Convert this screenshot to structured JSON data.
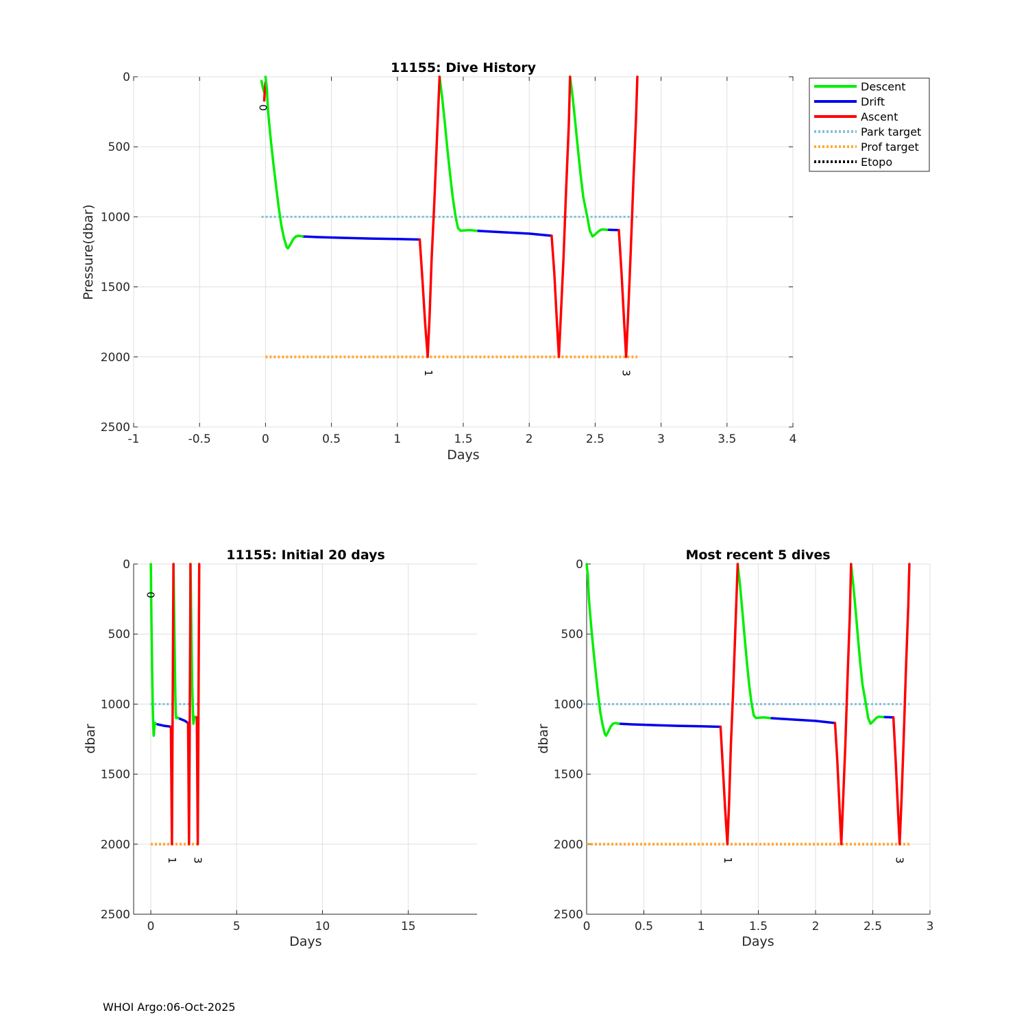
{
  "footer": "WHOI Argo:06-Oct-2025",
  "colors": {
    "descent": "#00ee00",
    "drift": "#0000ee",
    "ascent": "#ff0000",
    "park_target": "#7ec0dc",
    "prof_target": "#ffaa33",
    "etopo": "#000000"
  },
  "chart_data": [
    {
      "id": "dive-history",
      "type": "line",
      "title": "11155: Dive History",
      "xlabel": "Days",
      "ylabel": "Pressure(dbar)",
      "xlim": [
        -1,
        4
      ],
      "ylim": [
        0,
        2500
      ],
      "y_reversed": true,
      "grid": true,
      "xticks": [
        "-1",
        "-0.5",
        "0",
        "0.5",
        "1",
        "1.5",
        "2",
        "2.5",
        "3",
        "3.5",
        "4"
      ],
      "yticks": [
        "0",
        "500",
        "1000",
        "1500",
        "2000",
        "2500"
      ],
      "legend": {
        "position": "outside-top-right",
        "entries": [
          "Descent",
          "Drift",
          "Ascent",
          "Park target",
          "Prof target",
          "Etopo"
        ]
      }
    },
    {
      "id": "initial-20-days",
      "type": "line",
      "title": "11155: Initial 20 days",
      "xlabel": "Days",
      "ylabel": "dbar",
      "xlim": [
        -1,
        19
      ],
      "ylim": [
        0,
        2500
      ],
      "y_reversed": true,
      "grid": true,
      "xticks": [
        "0",
        "5",
        "10",
        "15"
      ],
      "yticks": [
        "0",
        "500",
        "1000",
        "1500",
        "2000",
        "2500"
      ]
    },
    {
      "id": "recent-5-dives",
      "type": "line",
      "title": "Most recent 5 dives",
      "xlabel": "Days",
      "ylabel": "dbar",
      "xlim": [
        0,
        3
      ],
      "ylim": [
        0,
        2500
      ],
      "y_reversed": true,
      "grid": true,
      "xticks": [
        "0",
        "0.5",
        "1",
        "1.5",
        "2",
        "2.5",
        "3"
      ],
      "yticks": [
        "0",
        "500",
        "1000",
        "1500",
        "2000",
        "2500"
      ]
    }
  ],
  "series": {
    "descent_pre": [
      [
        -0.03,
        30
      ],
      [
        -0.02,
        80
      ],
      [
        -0.01,
        110
      ]
    ],
    "ascent_pre": [
      [
        -0.01,
        170
      ],
      [
        -0.005,
        100
      ],
      [
        0.0,
        40
      ]
    ],
    "descent": [
      [
        [
          0.0,
          0
        ],
        [
          0.01,
          80
        ],
        [
          0.02,
          250
        ],
        [
          0.04,
          450
        ],
        [
          0.06,
          620
        ],
        [
          0.08,
          780
        ],
        [
          0.1,
          930
        ],
        [
          0.12,
          1060
        ],
        [
          0.14,
          1150
        ],
        [
          0.16,
          1215
        ],
        [
          0.17,
          1225
        ],
        [
          0.19,
          1195
        ],
        [
          0.21,
          1160
        ],
        [
          0.23,
          1140
        ],
        [
          0.25,
          1135
        ],
        [
          0.28,
          1140
        ]
      ],
      [
        [
          1.32,
          0
        ],
        [
          1.34,
          150
        ],
        [
          1.36,
          330
        ],
        [
          1.38,
          520
        ],
        [
          1.4,
          700
        ],
        [
          1.42,
          860
        ],
        [
          1.44,
          990
        ],
        [
          1.46,
          1080
        ],
        [
          1.48,
          1100
        ],
        [
          1.5,
          1098
        ],
        [
          1.55,
          1095
        ],
        [
          1.6,
          1100
        ]
      ],
      [
        [
          2.31,
          0
        ],
        [
          2.33,
          150
        ],
        [
          2.35,
          330
        ],
        [
          2.37,
          520
        ],
        [
          2.39,
          700
        ],
        [
          2.41,
          860
        ],
        [
          2.44,
          1000
        ],
        [
          2.46,
          1100
        ],
        [
          2.48,
          1140
        ],
        [
          2.5,
          1125
        ],
        [
          2.53,
          1100
        ],
        [
          2.55,
          1090
        ],
        [
          2.59,
          1092
        ]
      ]
    ],
    "drift": [
      [
        [
          0.28,
          1140
        ],
        [
          0.4,
          1145
        ],
        [
          0.6,
          1150
        ],
        [
          0.8,
          1155
        ],
        [
          1.0,
          1158
        ],
        [
          1.17,
          1162
        ]
      ],
      [
        [
          1.6,
          1100
        ],
        [
          1.8,
          1110
        ],
        [
          2.0,
          1120
        ],
        [
          2.17,
          1135
        ]
      ],
      [
        [
          2.59,
          1092
        ],
        [
          2.68,
          1095
        ]
      ]
    ],
    "ascent": [
      [
        [
          1.17,
          1162
        ],
        [
          1.19,
          1450
        ],
        [
          1.21,
          1750
        ],
        [
          1.23,
          2000
        ],
        [
          1.245,
          1700
        ],
        [
          1.26,
          1300
        ],
        [
          1.28,
          900
        ],
        [
          1.3,
          450
        ],
        [
          1.32,
          0
        ]
      ],
      [
        [
          2.17,
          1135
        ],
        [
          2.19,
          1400
        ],
        [
          2.21,
          1750
        ],
        [
          2.225,
          2000
        ],
        [
          2.24,
          1700
        ],
        [
          2.26,
          1300
        ],
        [
          2.28,
          800
        ],
        [
          2.3,
          350
        ],
        [
          2.31,
          0
        ]
      ],
      [
        [
          2.68,
          1095
        ],
        [
          2.7,
          1400
        ],
        [
          2.72,
          1750
        ],
        [
          2.735,
          2000
        ],
        [
          2.75,
          1700
        ],
        [
          2.77,
          1250
        ],
        [
          2.79,
          750
        ],
        [
          2.81,
          300
        ],
        [
          2.82,
          0
        ]
      ]
    ],
    "park_target": {
      "value": 1000,
      "x": [
        -0.03,
        2.82
      ]
    },
    "prof_target": {
      "value": 2000,
      "x": [
        0.0,
        2.82
      ]
    },
    "profile_markers": [
      {
        "label": "0",
        "x": -0.02,
        "y": 220
      },
      {
        "label": "1",
        "x": 1.235,
        "y": 2115
      },
      {
        "label": "3",
        "x": 2.735,
        "y": 2115
      }
    ],
    "recent_markers": [
      {
        "label": "1",
        "x": 1.235,
        "y": 2115
      },
      {
        "label": "3",
        "x": 2.735,
        "y": 2115
      }
    ]
  }
}
